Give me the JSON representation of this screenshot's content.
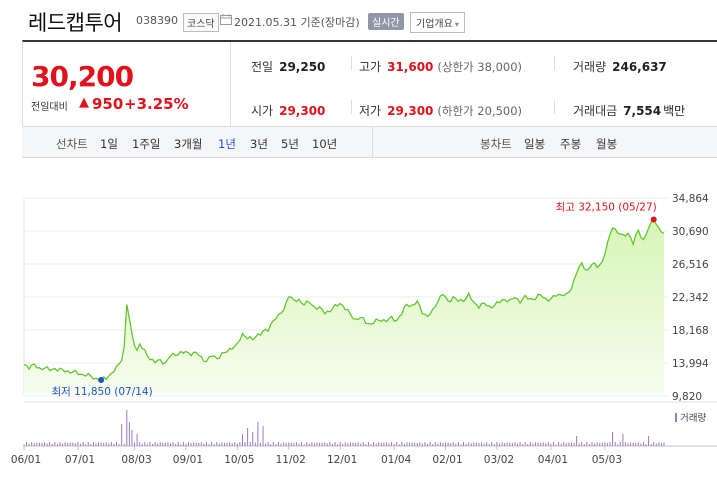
{
  "header": {
    "stock_name": "레드캡투어",
    "stock_code": "038390",
    "market": "코스닥",
    "date_text": "2021.05.31 기준(장마감)",
    "realtime_label": "실시간",
    "company_overview_label": "기업개요"
  },
  "summary": {
    "current_price": "30,200",
    "change_label": "전일대비",
    "change_value": "950",
    "change_pct": "+3.25%",
    "prev_close_label": "전일",
    "prev_close": "29,250",
    "high_label": "고가",
    "high": "31,600",
    "upper_limit": "(상한가 38,000)",
    "volume_label": "거래량",
    "volume": "246,637",
    "open_label": "시가",
    "open": "29,300",
    "low_label": "저가",
    "low": "29,300",
    "lower_limit": "(하한가 20,500)",
    "amount_label": "거래대금",
    "amount": "7,554",
    "amount_unit": "백만"
  },
  "period_bar": {
    "line_chart_label": "선차트",
    "line_periods": [
      "1일",
      "1주일",
      "3개월",
      "1년",
      "3년",
      "5년",
      "10년"
    ],
    "active_period": "1년",
    "candle_chart_label": "봉차트",
    "candle_periods": [
      "일봉",
      "주봉",
      "월봉"
    ]
  },
  "colors": {
    "up": "#e0121b",
    "down": "#1e54c6",
    "line": "#62c72e",
    "fill_top": "#d7f5b6",
    "fill_bottom": "#f7fdf0"
  },
  "chart_data": {
    "type": "area",
    "ylim": [
      9820,
      34864
    ],
    "ytick_labels": [
      "34,864",
      "30,690",
      "26,516",
      "22,342",
      "18,168",
      "13,994",
      "9,820"
    ],
    "yticks": [
      34864,
      30690,
      26516,
      22342,
      18168,
      13994,
      9820
    ],
    "xtick_labels": [
      "06/01",
      "07/01",
      "08/03",
      "09/01",
      "10/05",
      "11/02",
      "12/01",
      "01/04",
      "02/01",
      "03/02",
      "04/01",
      "05/03"
    ],
    "xtick_index": [
      0,
      21,
      43,
      63,
      83,
      103,
      123,
      144,
      164,
      184,
      205,
      226
    ],
    "n_points": 250,
    "price_keys": [
      [
        0,
        13800
      ],
      [
        2,
        13500
      ],
      [
        4,
        13700
      ],
      [
        6,
        13300
      ],
      [
        8,
        13400
      ],
      [
        10,
        13100
      ],
      [
        12,
        13300
      ],
      [
        14,
        13100
      ],
      [
        16,
        13000
      ],
      [
        18,
        12900
      ],
      [
        20,
        12800
      ],
      [
        22,
        12600
      ],
      [
        24,
        12500
      ],
      [
        26,
        12300
      ],
      [
        28,
        12000
      ],
      [
        30,
        11850
      ],
      [
        32,
        12100
      ],
      [
        34,
        12700
      ],
      [
        36,
        13300
      ],
      [
        38,
        14500
      ],
      [
        39,
        16000
      ],
      [
        40,
        21500
      ],
      [
        41,
        19500
      ],
      [
        42,
        17500
      ],
      [
        43,
        16400
      ],
      [
        44,
        15600
      ],
      [
        45,
        16400
      ],
      [
        47,
        15400
      ],
      [
        49,
        14600
      ],
      [
        51,
        14100
      ],
      [
        53,
        14300
      ],
      [
        55,
        14000
      ],
      [
        57,
        14900
      ],
      [
        59,
        15100
      ],
      [
        61,
        15300
      ],
      [
        63,
        15300
      ],
      [
        65,
        15200
      ],
      [
        67,
        15300
      ],
      [
        69,
        14600
      ],
      [
        71,
        14300
      ],
      [
        73,
        14900
      ],
      [
        75,
        14600
      ],
      [
        77,
        15100
      ],
      [
        79,
        15400
      ],
      [
        81,
        16000
      ],
      [
        83,
        16300
      ],
      [
        85,
        17600
      ],
      [
        87,
        17300
      ],
      [
        89,
        16900
      ],
      [
        91,
        17600
      ],
      [
        93,
        18000
      ],
      [
        95,
        18100
      ],
      [
        97,
        19500
      ],
      [
        99,
        19900
      ],
      [
        101,
        20700
      ],
      [
        103,
        22600
      ],
      [
        105,
        21800
      ],
      [
        107,
        22000
      ],
      [
        109,
        21400
      ],
      [
        111,
        21700
      ],
      [
        113,
        21100
      ],
      [
        115,
        20900
      ],
      [
        117,
        20400
      ],
      [
        119,
        20600
      ],
      [
        121,
        21100
      ],
      [
        123,
        21600
      ],
      [
        125,
        20900
      ],
      [
        127,
        20100
      ],
      [
        129,
        19500
      ],
      [
        131,
        19700
      ],
      [
        133,
        19200
      ],
      [
        135,
        18900
      ],
      [
        137,
        19300
      ],
      [
        139,
        19500
      ],
      [
        141,
        19300
      ],
      [
        143,
        19700
      ],
      [
        145,
        19400
      ],
      [
        147,
        20200
      ],
      [
        149,
        21500
      ],
      [
        151,
        21200
      ],
      [
        153,
        21700
      ],
      [
        155,
        20500
      ],
      [
        157,
        19800
      ],
      [
        159,
        20600
      ],
      [
        161,
        21900
      ],
      [
        163,
        22700
      ],
      [
        165,
        21800
      ],
      [
        167,
        22300
      ],
      [
        169,
        21800
      ],
      [
        171,
        22000
      ],
      [
        173,
        22600
      ],
      [
        175,
        21600
      ],
      [
        177,
        21200
      ],
      [
        179,
        21500
      ],
      [
        181,
        21100
      ],
      [
        183,
        21300
      ],
      [
        185,
        21700
      ],
      [
        187,
        22100
      ],
      [
        189,
        21800
      ],
      [
        191,
        22300
      ],
      [
        193,
        21800
      ],
      [
        195,
        22300
      ],
      [
        197,
        22100
      ],
      [
        199,
        22200
      ],
      [
        201,
        22600
      ],
      [
        203,
        22100
      ],
      [
        205,
        22000
      ],
      [
        207,
        22600
      ],
      [
        209,
        22700
      ],
      [
        211,
        22500
      ],
      [
        213,
        23500
      ],
      [
        215,
        25500
      ],
      [
        217,
        26500
      ],
      [
        219,
        25700
      ],
      [
        221,
        26500
      ],
      [
        223,
        26200
      ],
      [
        225,
        26800
      ],
      [
        227,
        29000
      ],
      [
        229,
        31300
      ],
      [
        231,
        30500
      ],
      [
        233,
        30000
      ],
      [
        235,
        30500
      ],
      [
        237,
        29100
      ],
      [
        239,
        30800
      ],
      [
        241,
        29500
      ],
      [
        243,
        31000
      ],
      [
        245,
        32150
      ],
      [
        247,
        31000
      ],
      [
        249,
        30200
      ]
    ],
    "max_point": {
      "index": 245,
      "value": 32150,
      "label": "최고 32,150 (05/27)"
    },
    "min_point": {
      "index": 30,
      "value": 11850,
      "label": "최저 11,850 (07/14)"
    },
    "volume_label": "거래량",
    "volume_spikes": [
      [
        38,
        0.55
      ],
      [
        40,
        0.9
      ],
      [
        41,
        0.6
      ],
      [
        42,
        0.4
      ],
      [
        44,
        0.3
      ],
      [
        85,
        0.3
      ],
      [
        87,
        0.45
      ],
      [
        89,
        0.35
      ],
      [
        91,
        0.6
      ],
      [
        93,
        0.5
      ],
      [
        215,
        0.25
      ],
      [
        229,
        0.35
      ],
      [
        233,
        0.3
      ],
      [
        243,
        0.25
      ]
    ],
    "grid": true
  }
}
